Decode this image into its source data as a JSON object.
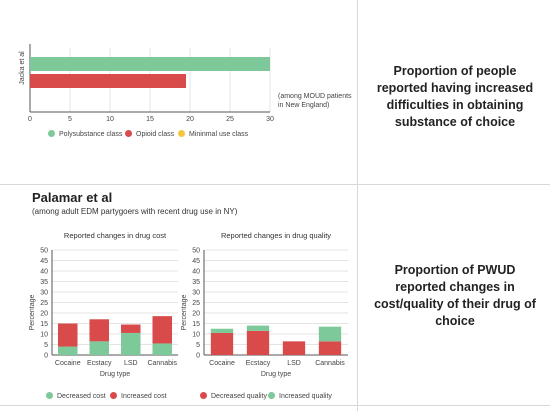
{
  "colors": {
    "green": "#7dc99a",
    "red": "#d94a4a",
    "yellow": "#f5c542",
    "grid": "#e0e0e0",
    "axis": "#444444"
  },
  "top": {
    "side_text": "Proportion of people reported having increased difficulties in obtaining substance of choice",
    "chart_annotation": "(among MOUD patients in New England)"
  },
  "bottom": {
    "title": "Palamar et al",
    "subtitle": "(among adult EDM partygoers with recent drug use in NY)",
    "side_text": "Proportion of PWUD reported changes in cost/quality of their drug of choice"
  },
  "chart_data": [
    {
      "type": "bar",
      "orientation": "horizontal",
      "categories": [
        "Jacka et al"
      ],
      "series": [
        {
          "name": "Polysubstance class",
          "values": [
            30
          ],
          "color": "#7dc99a"
        },
        {
          "name": "Opioid class",
          "values": [
            19.5
          ],
          "color": "#d94a4a"
        },
        {
          "name": "Mininmal use class",
          "values": [
            0
          ],
          "color": "#f5c542"
        }
      ],
      "xlim": [
        0,
        30
      ],
      "xticks": [
        "0",
        "5",
        "10",
        "15",
        "20",
        "25",
        "30"
      ],
      "legend": "bottom"
    },
    {
      "type": "bar",
      "stacked": true,
      "title": "Reported changes in drug cost",
      "xlabel": "Drug type",
      "ylabel": "Percentage",
      "categories": [
        "Cocaine",
        "Ecstacy",
        "LSD",
        "Cannabis"
      ],
      "series": [
        {
          "name": "Decreased cost",
          "values": [
            4,
            6.5,
            10.5,
            5.5
          ],
          "color": "#7dc99a"
        },
        {
          "name": "Increased cost",
          "values": [
            11,
            10.5,
            4,
            13
          ],
          "color": "#d94a4a"
        }
      ],
      "ylim": [
        0,
        50
      ],
      "yticks": [
        "0",
        "5",
        "10",
        "15",
        "20",
        "25",
        "30",
        "35",
        "40",
        "45",
        "50"
      ],
      "legend": "bottom"
    },
    {
      "type": "bar",
      "stacked": true,
      "title": "Reported changes in drug quality",
      "xlabel": "Drug type",
      "ylabel": "Percentage",
      "categories": [
        "Cocaine",
        "Ecstacy",
        "LSD",
        "Cannabis"
      ],
      "series": [
        {
          "name": "Decreased quality",
          "values": [
            10.5,
            11.5,
            6.5,
            6.5
          ],
          "color": "#d94a4a"
        },
        {
          "name": "Increased quality",
          "values": [
            2,
            2.5,
            0,
            7
          ],
          "color": "#7dc99a"
        }
      ],
      "ylim": [
        0,
        50
      ],
      "yticks": [
        "0",
        "5",
        "10",
        "15",
        "20",
        "25",
        "30",
        "35",
        "40",
        "45",
        "50"
      ],
      "legend": "bottom"
    }
  ]
}
